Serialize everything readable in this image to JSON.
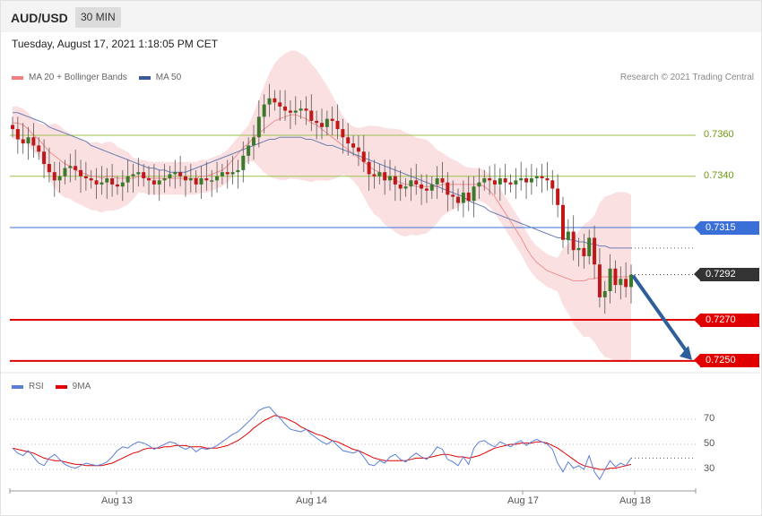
{
  "header": {
    "symbol": "AUD/USD",
    "timeframe": "30 MIN"
  },
  "datetime": "Tuesday, August 17, 2021 1:18:05 PM CET",
  "legend_main": [
    {
      "label": "MA 20 + Bollinger Bands",
      "color": "#f08080"
    },
    {
      "label": "MA 50",
      "color": "#3a5a9a"
    }
  ],
  "legend_rsi": [
    {
      "label": "RSI",
      "color": "#5b7fd6"
    },
    {
      "label": "9MA",
      "color": "#e00000"
    }
  ],
  "credit": "Research © 2021 Trading Central",
  "colors": {
    "up": "#3a7a2a",
    "down": "#c01818",
    "band": "#fadadd",
    "ma20": "#f09090",
    "ma50": "#6a7fb0",
    "resistance": "#9bc24a",
    "pivot": "#3a6fd8",
    "support": "#e00000",
    "last": "#333333",
    "arrow": "#2f5f9a"
  },
  "chart_data": [
    {
      "type": "candlestick",
      "title": "AUD/USD 30 MIN",
      "x_ticks": [
        "Aug 13",
        "Aug 14",
        "Aug 17",
        "Aug 18"
      ],
      "ylim": [
        0.7246,
        0.7384
      ],
      "levels": [
        {
          "value": 0.736,
          "label": "0.7360",
          "kind": "resistance"
        },
        {
          "value": 0.734,
          "label": "0.7340",
          "kind": "resistance"
        },
        {
          "value": 0.7315,
          "label": "0.7315",
          "kind": "pivot"
        },
        {
          "value": 0.727,
          "label": "0.7270",
          "kind": "support"
        },
        {
          "value": 0.725,
          "label": "0.7250",
          "kind": "support"
        }
      ],
      "last_price": {
        "value": 0.7292,
        "label": "0.7292"
      },
      "close_series": [
        0.7363,
        0.7358,
        0.7356,
        0.7359,
        0.7355,
        0.7352,
        0.7346,
        0.7342,
        0.7338,
        0.734,
        0.7344,
        0.7345,
        0.7343,
        0.734,
        0.7339,
        0.7338,
        0.7336,
        0.7337,
        0.7339,
        0.7336,
        0.7335,
        0.7337,
        0.734,
        0.7341,
        0.7342,
        0.7339,
        0.7338,
        0.7336,
        0.7338,
        0.7339,
        0.7341,
        0.7342,
        0.734,
        0.7338,
        0.7339,
        0.7336,
        0.7339,
        0.7338,
        0.7338,
        0.734,
        0.7342,
        0.7341,
        0.7342,
        0.7343,
        0.735,
        0.7355,
        0.7359,
        0.7369,
        0.7375,
        0.7378,
        0.7376,
        0.7374,
        0.7372,
        0.7371,
        0.7372,
        0.7373,
        0.7372,
        0.7367,
        0.7366,
        0.7364,
        0.7368,
        0.7367,
        0.7363,
        0.7359,
        0.7356,
        0.7354,
        0.7352,
        0.7347,
        0.7341,
        0.734,
        0.7342,
        0.7338,
        0.734,
        0.7336,
        0.7334,
        0.7335,
        0.7338,
        0.7336,
        0.7334,
        0.7333,
        0.7336,
        0.7339,
        0.7337,
        0.7331,
        0.733,
        0.7327,
        0.7332,
        0.7328,
        0.7335,
        0.7337,
        0.7339,
        0.7338,
        0.7336,
        0.7339,
        0.7337,
        0.7336,
        0.7338,
        0.7339,
        0.7337,
        0.7339,
        0.734,
        0.7339,
        0.7338,
        0.7334,
        0.7326,
        0.7309,
        0.7313,
        0.7304,
        0.7305,
        0.7301,
        0.731,
        0.7297,
        0.7281,
        0.7284,
        0.7295,
        0.7287,
        0.729,
        0.7286,
        0.7292
      ],
      "ma20_series": [
        0.7366,
        0.7366,
        0.7365,
        0.7363,
        0.736,
        0.7358,
        0.7355,
        0.7352,
        0.735,
        0.7348,
        0.7346,
        0.7345,
        0.7343,
        0.7342,
        0.7341,
        0.734,
        0.734,
        0.7339,
        0.734,
        0.734,
        0.7339,
        0.7339,
        0.7339,
        0.7339,
        0.734,
        0.734,
        0.7339,
        0.7339,
        0.7339,
        0.7339,
        0.7339,
        0.7339,
        0.7339,
        0.7339,
        0.7339,
        0.7339,
        0.734,
        0.734,
        0.7341,
        0.7342,
        0.7343,
        0.7345,
        0.7348,
        0.7351,
        0.7354,
        0.7356,
        0.7359,
        0.7361,
        0.7363,
        0.7365,
        0.7367,
        0.7368,
        0.7369,
        0.737,
        0.737,
        0.7369,
        0.7368,
        0.7366,
        0.7365,
        0.7363,
        0.7361,
        0.7359,
        0.7357,
        0.7355,
        0.7353,
        0.7351,
        0.7349,
        0.7347,
        0.7345,
        0.7343,
        0.7342,
        0.734,
        0.7339,
        0.7338,
        0.7337,
        0.7336,
        0.7336,
        0.7335,
        0.7335,
        0.7335,
        0.7335,
        0.7335,
        0.7336,
        0.7336,
        0.7336,
        0.7336,
        0.7336,
        0.7336,
        0.7336,
        0.7336,
        0.7335,
        0.7333,
        0.733,
        0.7326,
        0.7322,
        0.7318,
        0.7314,
        0.731,
        0.7305,
        0.7301,
        0.7298,
        0.7296,
        0.7294,
        0.7293,
        0.7292,
        0.7291,
        0.729,
        0.7289,
        0.7289,
        0.7289,
        0.729,
        0.729,
        0.7291,
        0.7291,
        0.7291,
        0.7291,
        0.7291,
        0.7291,
        0.7291
      ],
      "ma50_series": [
        0.7371,
        0.7371,
        0.737,
        0.7369,
        0.7368,
        0.7367,
        0.7366,
        0.7364,
        0.7363,
        0.7362,
        0.7361,
        0.736,
        0.7359,
        0.7358,
        0.7357,
        0.7355,
        0.7354,
        0.7353,
        0.7352,
        0.7351,
        0.735,
        0.7349,
        0.7348,
        0.7347,
        0.7346,
        0.7345,
        0.7344,
        0.7344,
        0.7343,
        0.7343,
        0.7342,
        0.7342,
        0.7342,
        0.7342,
        0.7343,
        0.7344,
        0.7345,
        0.7346,
        0.7347,
        0.7348,
        0.7349,
        0.735,
        0.7351,
        0.7352,
        0.7353,
        0.7354,
        0.7355,
        0.7356,
        0.7357,
        0.7358,
        0.7358,
        0.7359,
        0.7359,
        0.7359,
        0.7359,
        0.7359,
        0.7358,
        0.7358,
        0.7357,
        0.7356,
        0.7355,
        0.7355,
        0.7354,
        0.7353,
        0.7352,
        0.7351,
        0.735,
        0.7349,
        0.7348,
        0.7347,
        0.7346,
        0.7345,
        0.7344,
        0.7343,
        0.7342,
        0.7341,
        0.734,
        0.7339,
        0.7338,
        0.7337,
        0.7336,
        0.7335,
        0.7334,
        0.7333,
        0.7332,
        0.7331,
        0.733,
        0.7328,
        0.7327,
        0.7326,
        0.7325,
        0.7323,
        0.7322,
        0.7321,
        0.732,
        0.7319,
        0.7318,
        0.7317,
        0.7316,
        0.7315,
        0.7314,
        0.7313,
        0.7312,
        0.7311,
        0.731,
        0.731,
        0.7309,
        0.7309,
        0.7308,
        0.7308,
        0.7307,
        0.7307,
        0.7306,
        0.7306,
        0.7305,
        0.7305,
        0.7305,
        0.7305,
        0.7305
      ]
    },
    {
      "type": "line",
      "title": "RSI",
      "ylim": [
        15,
        85
      ],
      "y_ticks": [
        70,
        50,
        30
      ],
      "series": [
        {
          "name": "RSI",
          "values": [
            47,
            43,
            41,
            45,
            40,
            35,
            33,
            39,
            42,
            38,
            34,
            32,
            31,
            33,
            35,
            34,
            33,
            34,
            36,
            40,
            45,
            48,
            47,
            50,
            52,
            51,
            49,
            46,
            48,
            50,
            52,
            51,
            48,
            46,
            48,
            44,
            47,
            46,
            47,
            49,
            52,
            55,
            58,
            60,
            64,
            68,
            72,
            77,
            79,
            80,
            75,
            71,
            66,
            62,
            61,
            60,
            62,
            58,
            55,
            52,
            50,
            53,
            49,
            45,
            44,
            43,
            45,
            40,
            34,
            33,
            37,
            35,
            40,
            42,
            38,
            36,
            40,
            43,
            40,
            38,
            42,
            48,
            46,
            38,
            36,
            33,
            40,
            34,
            47,
            52,
            53,
            50,
            48,
            52,
            50,
            48,
            51,
            53,
            49,
            52,
            54,
            52,
            50,
            46,
            35,
            28,
            36,
            31,
            33,
            30,
            41,
            28,
            22,
            30,
            37,
            32,
            35,
            33,
            39
          ]
        },
        {
          "name": "9MA",
          "values": [
            47,
            46,
            45,
            44,
            43,
            41,
            39,
            38,
            37,
            37,
            36,
            35,
            34,
            34,
            33,
            33,
            33,
            33,
            34,
            35,
            37,
            39,
            41,
            43,
            44,
            46,
            47,
            47,
            47,
            48,
            48,
            49,
            49,
            49,
            48,
            48,
            48,
            47,
            47,
            47,
            48,
            49,
            51,
            53,
            56,
            59,
            63,
            66,
            69,
            71,
            73,
            72,
            71,
            69,
            67,
            64,
            62,
            60,
            58,
            57,
            55,
            53,
            52,
            50,
            48,
            46,
            45,
            43,
            41,
            39,
            38,
            37,
            37,
            37,
            37,
            37,
            38,
            39,
            39,
            39,
            40,
            41,
            42,
            42,
            41,
            40,
            40,
            39,
            40,
            41,
            43,
            45,
            47,
            48,
            49,
            50,
            50,
            51,
            51,
            51,
            52,
            52,
            51,
            49,
            47,
            44,
            41,
            38,
            35,
            33,
            32,
            31,
            30,
            30,
            31,
            31,
            32,
            33,
            34
          ]
        }
      ]
    }
  ]
}
